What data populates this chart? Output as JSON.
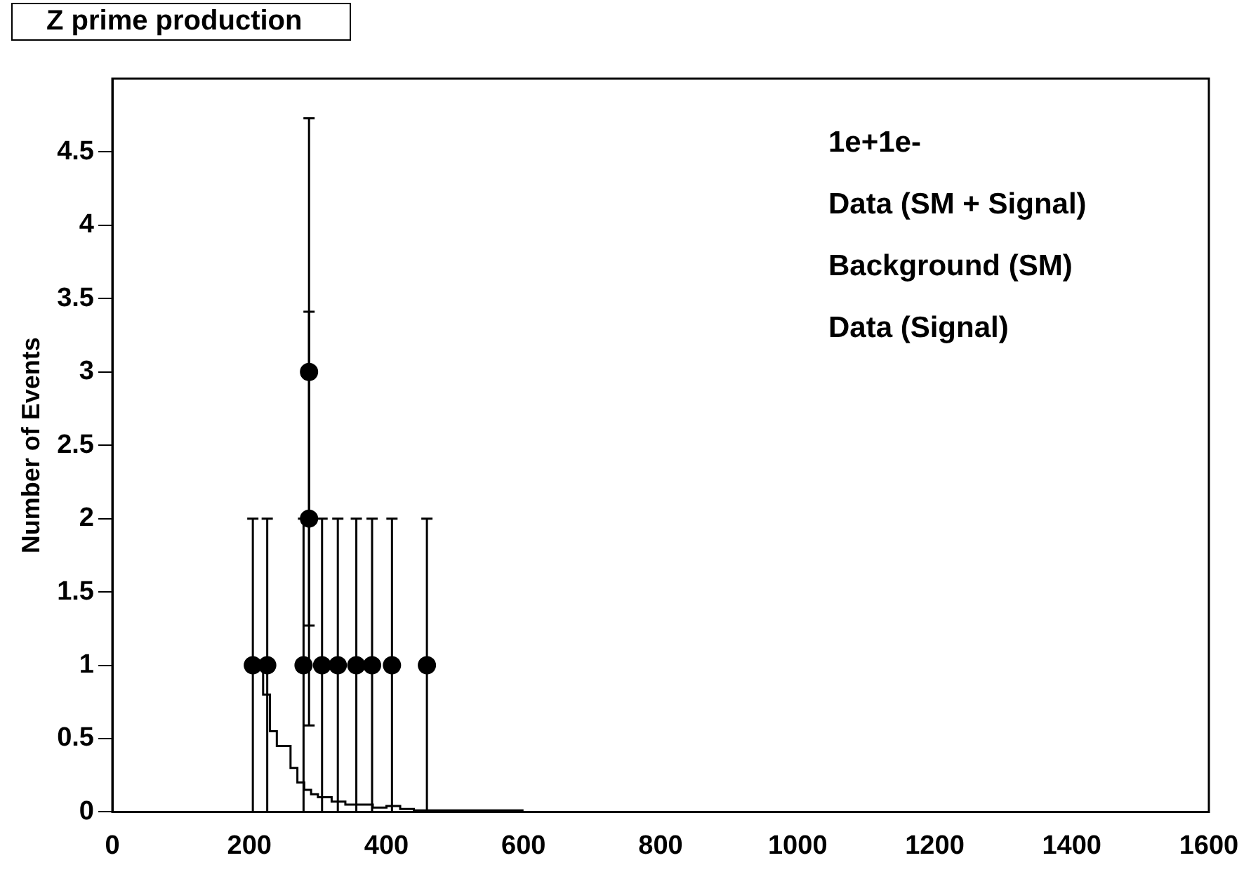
{
  "chart_data": {
    "type": "scatter",
    "title": "Z prime production",
    "ylabel": "Number of Events",
    "xlim": [
      0,
      1600
    ],
    "xticks": [
      0,
      200,
      400,
      600,
      800,
      1000,
      1200,
      1400,
      1600
    ],
    "ylim": [
      0,
      5
    ],
    "yticks": [
      0,
      0.5,
      1,
      1.5,
      2,
      2.5,
      3,
      3.5,
      4,
      4.5
    ],
    "grid": false,
    "legend": false,
    "marker": "circle",
    "annotations": [
      "1e+1e-",
      "Data (SM + Signal)",
      "Background (SM)",
      "Data (Signal)"
    ],
    "series": [
      {
        "type": "histogram",
        "color": "#000000",
        "bins": [
          200,
          220,
          230,
          240,
          260,
          270,
          280,
          290,
          300,
          320,
          340,
          360,
          380,
          400,
          420,
          440,
          460,
          500,
          600
        ],
        "values": [
          1.0,
          0.8,
          0.55,
          0.45,
          0.3,
          0.2,
          0.15,
          0.12,
          0.1,
          0.07,
          0.05,
          0.05,
          0.03,
          0.04,
          0.02,
          0.01,
          0.01,
          0.01
        ]
      },
      {
        "color": "#000000",
        "x": [
          205,
          226,
          279,
          287,
          287,
          306,
          329,
          356,
          379,
          408,
          459
        ],
        "values": [
          1,
          1,
          1,
          3,
          2,
          1,
          1,
          1,
          1,
          1,
          1
        ],
        "errors": [
          1,
          1,
          1,
          1.73,
          1.41,
          1,
          1,
          1,
          1,
          1,
          1
        ]
      }
    ]
  }
}
